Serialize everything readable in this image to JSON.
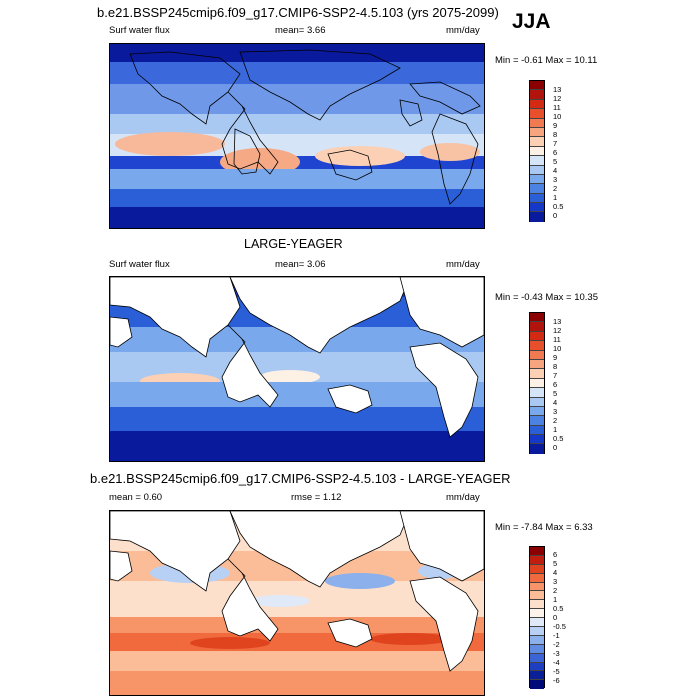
{
  "season": "JJA",
  "panels": [
    {
      "title": "b.e21.BSSP245cmip6.f09_g17.CMIP6-SSP2-4.5.103 (yrs 2075-2099)",
      "left_label": "Surf water flux",
      "mean_label": "mean=",
      "mean_value": "3.66",
      "units": "mm/day",
      "minmax": "Min = -0.61 Max = 10.11",
      "colorbar_labels": [
        "13",
        "12",
        "11",
        "10",
        "9",
        "8",
        "7",
        "6",
        "5",
        "4",
        "3",
        "2",
        "1",
        "0.5",
        "0"
      ]
    },
    {
      "title": "LARGE-YEAGER",
      "left_label": "Surf water flux",
      "mean_label": "mean=",
      "mean_value": "3.06",
      "units": "mm/day",
      "minmax": "Min = -0.43 Max = 10.35",
      "colorbar_labels": [
        "13",
        "12",
        "11",
        "10",
        "9",
        "8",
        "7",
        "6",
        "5",
        "4",
        "3",
        "2",
        "1",
        "0.5",
        "0"
      ]
    },
    {
      "title": "b.e21.BSSP245cmip6.f09_g17.CMIP6-SSP2-4.5.103 - LARGE-YEAGER",
      "mean_text": "mean =  0.60",
      "rmse_text": "rmse =  1.12",
      "units": "mm/day",
      "minmax": "Min = -7.84 Max =  6.33",
      "colorbar_labels": [
        "6",
        "5",
        "4",
        "3",
        "2",
        "1",
        "0.5",
        "0",
        "-0.5",
        "-1",
        "-2",
        "-3",
        "-4",
        "-5",
        "-6"
      ]
    }
  ],
  "colors": {
    "abs_scale": [
      "#8b0000",
      "#b0140c",
      "#d42a14",
      "#e8502b",
      "#f27a52",
      "#f7a57f",
      "#fbd0b5",
      "#fdf0e4",
      "#d6e4f8",
      "#a9c8f2",
      "#7aa8ec",
      "#4c83e2",
      "#2a5fd8",
      "#1638c8",
      "#0a1a9c",
      "#000a78"
    ],
    "diff_scale": [
      "#8b0000",
      "#c01e0e",
      "#e0441f",
      "#f06a3e",
      "#f79468",
      "#fbbd98",
      "#fde0cc",
      "#fdf3ea",
      "#dfe9f8",
      "#b8d0f3",
      "#8bb0ec",
      "#5f8be3",
      "#3b65d6",
      "#1f3fc1",
      "#0b1f98",
      "#000a78"
    ]
  }
}
